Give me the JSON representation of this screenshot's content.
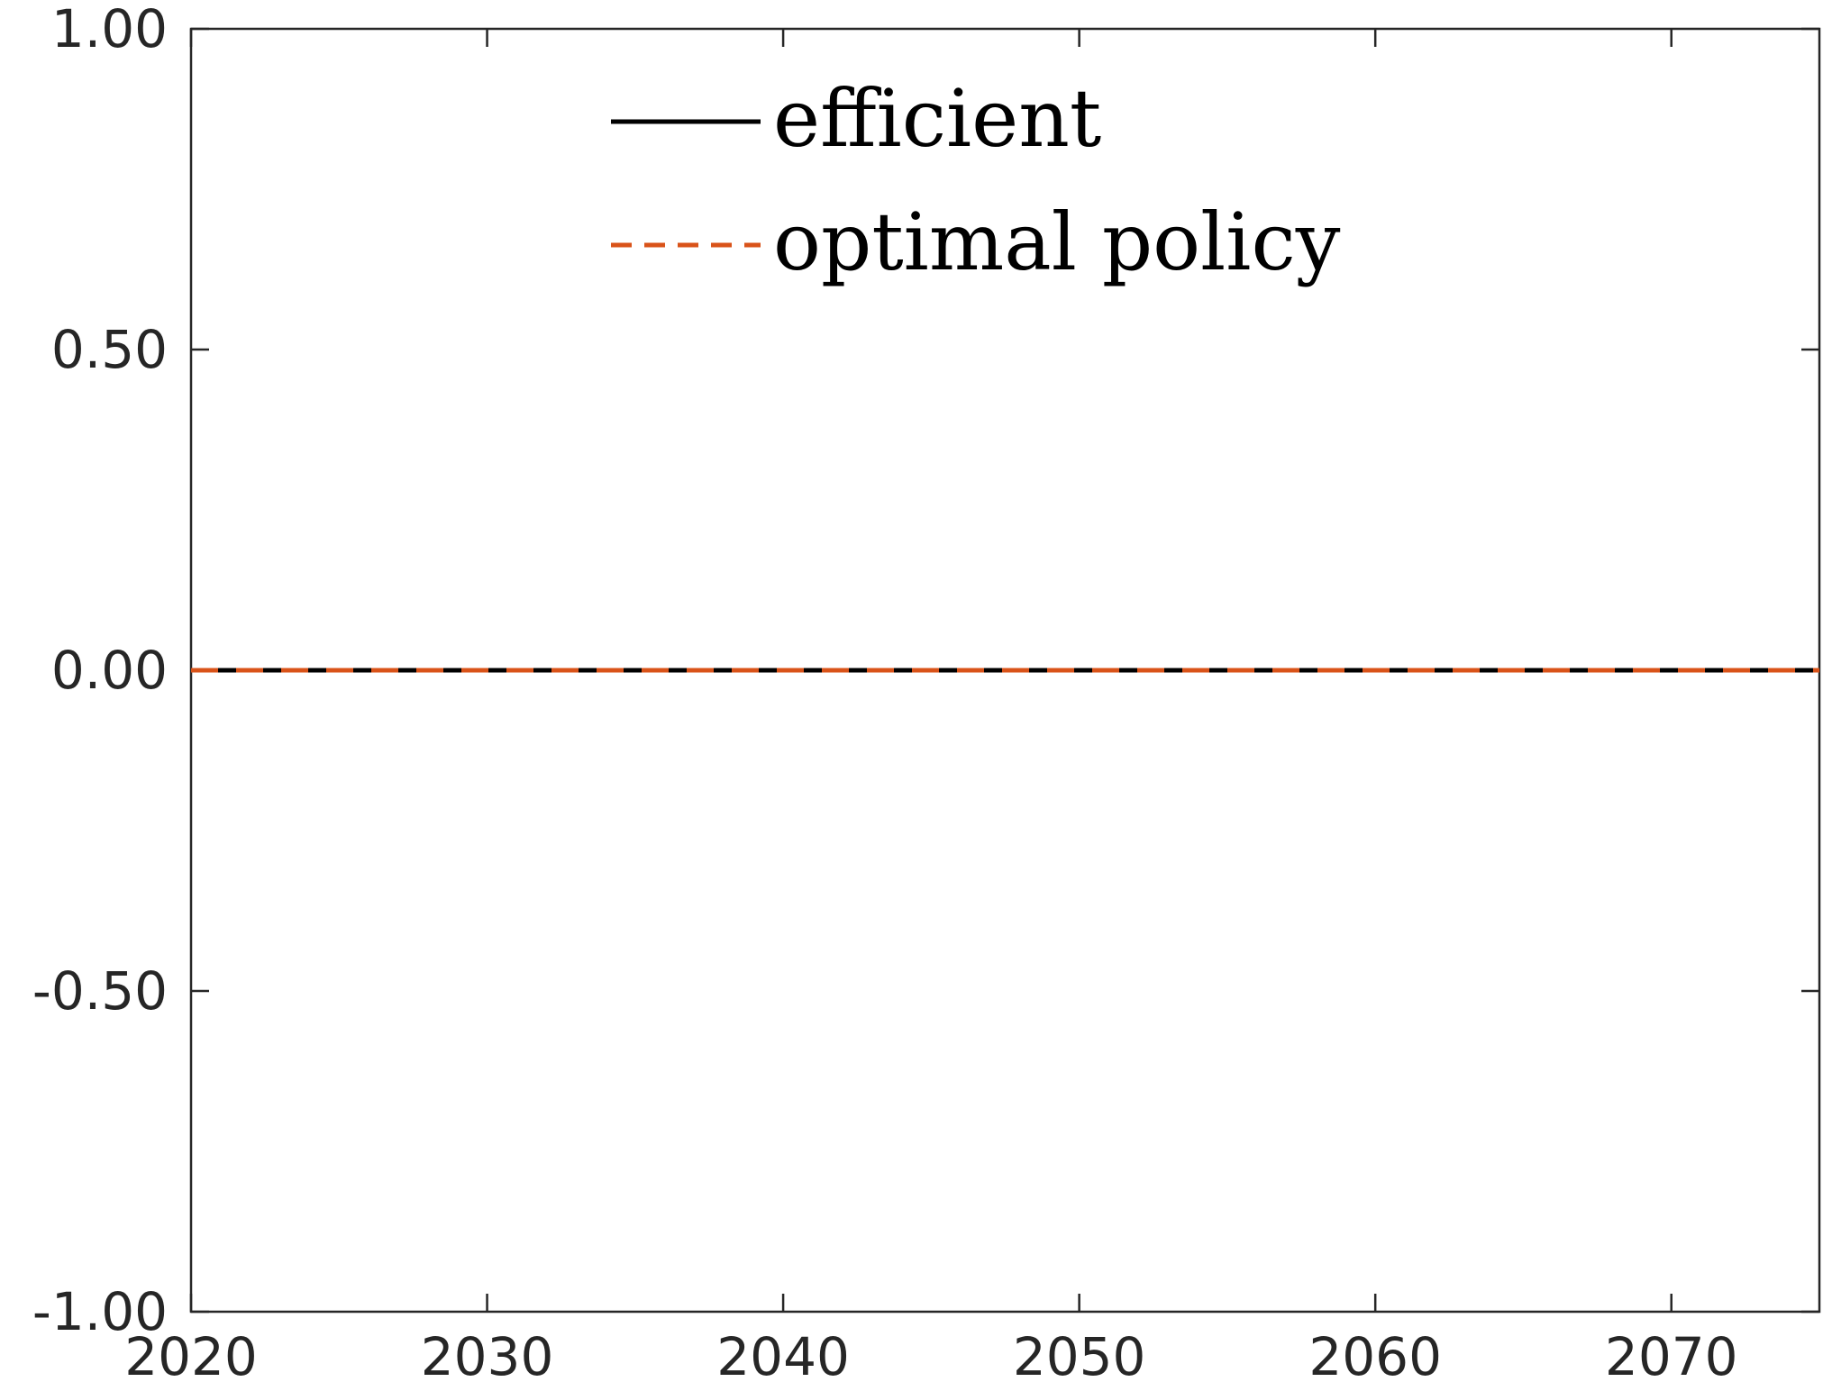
{
  "chart_data": {
    "type": "line",
    "title": "",
    "xlabel": "",
    "ylabel": "",
    "xlim": [
      2020,
      2075
    ],
    "ylim": [
      -1.0,
      1.0
    ],
    "x_ticks": [
      2020,
      2030,
      2040,
      2050,
      2060,
      2070
    ],
    "x_tick_labels": [
      "2020",
      "2030",
      "2040",
      "2050",
      "2060",
      "2070"
    ],
    "y_ticks": [
      -1.0,
      -0.5,
      0.0,
      0.5,
      1.0
    ],
    "y_tick_labels": [
      "-1.00",
      "-0.50",
      "0.00",
      "0.50",
      "1.00"
    ],
    "grid": false,
    "legend_position": "top-center",
    "series": [
      {
        "name": "efficient",
        "color": "#000000",
        "style": "solid",
        "x": [
          2020,
          2075
        ],
        "y": [
          0.0,
          0.0
        ]
      },
      {
        "name": "optimal policy",
        "color": "#D95319",
        "style": "dashed",
        "x": [
          2020,
          2075
        ],
        "y": [
          0.0,
          0.0
        ]
      }
    ]
  }
}
